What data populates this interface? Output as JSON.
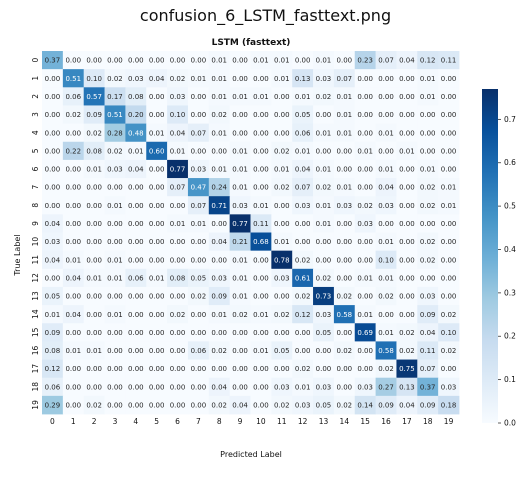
{
  "page_title": "confusion_6_LSTM_fasttext.png",
  "chart_data": {
    "type": "heatmap",
    "title": "LSTM (fasttext)",
    "xlabel": "Predicted Label",
    "ylabel": "True Label",
    "x_categories": [
      "0",
      "1",
      "2",
      "3",
      "4",
      "5",
      "6",
      "7",
      "8",
      "9",
      "10",
      "11",
      "12",
      "13",
      "14",
      "15",
      "16",
      "17",
      "18",
      "19"
    ],
    "y_categories": [
      "0",
      "1",
      "2",
      "3",
      "4",
      "5",
      "6",
      "7",
      "8",
      "9",
      "10",
      "11",
      "12",
      "13",
      "14",
      "15",
      "16",
      "17",
      "18",
      "19"
    ],
    "colormap": "Blues",
    "colorbar": {
      "min": 0.0,
      "max": 0.77,
      "ticks": [
        0.0,
        0.1,
        0.2,
        0.3,
        0.4,
        0.5,
        0.6,
        0.7
      ]
    },
    "annotation_format": "0.00",
    "values": [
      [
        0.37,
        0.0,
        0.0,
        0.0,
        0.0,
        0.0,
        0.0,
        0.0,
        0.01,
        0.0,
        0.01,
        0.01,
        0.0,
        0.01,
        0.0,
        0.23,
        0.07,
        0.04,
        0.12,
        0.11
      ],
      [
        0.0,
        0.51,
        0.1,
        0.02,
        0.03,
        0.04,
        0.02,
        0.01,
        0.01,
        0.0,
        0.0,
        0.01,
        0.13,
        0.03,
        0.07,
        0.0,
        0.0,
        0.0,
        0.01,
        0.0
      ],
      [
        0.0,
        0.06,
        0.57,
        0.17,
        0.08,
        0.0,
        0.03,
        0.0,
        0.01,
        0.01,
        0.01,
        0.0,
        0.01,
        0.02,
        0.01,
        0.0,
        0.0,
        0.0,
        0.01,
        0.0
      ],
      [
        0.0,
        0.02,
        0.09,
        0.51,
        0.2,
        0.0,
        0.1,
        0.0,
        0.02,
        0.0,
        0.0,
        0.0,
        0.05,
        0.0,
        0.01,
        0.0,
        0.0,
        0.0,
        0.0,
        0.0
      ],
      [
        0.0,
        0.0,
        0.02,
        0.28,
        0.48,
        0.01,
        0.04,
        0.07,
        0.01,
        0.0,
        0.0,
        0.0,
        0.06,
        0.01,
        0.01,
        0.0,
        0.01,
        0.0,
        0.0,
        0.0
      ],
      [
        0.0,
        0.22,
        0.08,
        0.02,
        0.01,
        0.6,
        0.01,
        0.0,
        0.0,
        0.01,
        0.0,
        0.02,
        0.01,
        0.0,
        0.0,
        0.01,
        0.0,
        0.01,
        0.0,
        0.0
      ],
      [
        0.0,
        0.0,
        0.01,
        0.03,
        0.04,
        0.0,
        0.77,
        0.03,
        0.01,
        0.01,
        0.0,
        0.01,
        0.04,
        0.01,
        0.0,
        0.0,
        0.01,
        0.0,
        0.01,
        0.0
      ],
      [
        0.0,
        0.0,
        0.0,
        0.0,
        0.0,
        0.0,
        0.07,
        0.47,
        0.24,
        0.01,
        0.0,
        0.02,
        0.07,
        0.02,
        0.01,
        0.0,
        0.04,
        0.0,
        0.02,
        0.01
      ],
      [
        0.0,
        0.0,
        0.0,
        0.01,
        0.0,
        0.0,
        0.0,
        0.07,
        0.71,
        0.03,
        0.01,
        0.0,
        0.03,
        0.01,
        0.03,
        0.02,
        0.03,
        0.0,
        0.02,
        0.01
      ],
      [
        0.04,
        0.0,
        0.0,
        0.0,
        0.0,
        0.0,
        0.01,
        0.01,
        0.0,
        0.77,
        0.11,
        0.0,
        0.0,
        0.01,
        0.0,
        0.03,
        0.0,
        0.0,
        0.0,
        0.0
      ],
      [
        0.03,
        0.0,
        0.0,
        0.0,
        0.0,
        0.0,
        0.0,
        0.0,
        0.04,
        0.21,
        0.68,
        0.01,
        0.0,
        0.0,
        0.0,
        0.0,
        0.01,
        0.0,
        0.02,
        0.0
      ],
      [
        0.04,
        0.01,
        0.0,
        0.01,
        0.0,
        0.0,
        0.0,
        0.0,
        0.0,
        0.01,
        0.0,
        0.78,
        0.02,
        0.0,
        0.0,
        0.0,
        0.1,
        0.0,
        0.02,
        0.0
      ],
      [
        0.0,
        0.04,
        0.01,
        0.01,
        0.06,
        0.01,
        0.08,
        0.05,
        0.03,
        0.01,
        0.0,
        0.03,
        0.61,
        0.02,
        0.0,
        0.01,
        0.01,
        0.0,
        0.0,
        0.0
      ],
      [
        0.05,
        0.0,
        0.0,
        0.0,
        0.0,
        0.0,
        0.0,
        0.02,
        0.09,
        0.01,
        0.0,
        0.0,
        0.02,
        0.73,
        0.02,
        0.0,
        0.02,
        0.0,
        0.03,
        0.0
      ],
      [
        0.01,
        0.04,
        0.0,
        0.01,
        0.0,
        0.0,
        0.02,
        0.0,
        0.01,
        0.02,
        0.01,
        0.02,
        0.12,
        0.03,
        0.58,
        0.01,
        0.0,
        0.0,
        0.09,
        0.02
      ],
      [
        0.09,
        0.0,
        0.0,
        0.0,
        0.0,
        0.0,
        0.0,
        0.0,
        0.0,
        0.0,
        0.0,
        0.0,
        0.0,
        0.05,
        0.0,
        0.69,
        0.01,
        0.02,
        0.04,
        0.1
      ],
      [
        0.08,
        0.01,
        0.01,
        0.0,
        0.0,
        0.0,
        0.0,
        0.06,
        0.02,
        0.0,
        0.01,
        0.05,
        0.0,
        0.0,
        0.02,
        0.0,
        0.58,
        0.02,
        0.11,
        0.02
      ],
      [
        0.12,
        0.0,
        0.0,
        0.0,
        0.0,
        0.0,
        0.0,
        0.0,
        0.0,
        0.0,
        0.0,
        0.0,
        0.02,
        0.0,
        0.0,
        0.0,
        0.02,
        0.75,
        0.07,
        0.0
      ],
      [
        0.06,
        0.0,
        0.0,
        0.0,
        0.0,
        0.0,
        0.0,
        0.0,
        0.04,
        0.0,
        0.0,
        0.03,
        0.01,
        0.03,
        0.0,
        0.03,
        0.27,
        0.13,
        0.37,
        0.03
      ],
      [
        0.29,
        0.0,
        0.02,
        0.0,
        0.0,
        0.0,
        0.0,
        0.0,
        0.02,
        0.04,
        0.0,
        0.02,
        0.03,
        0.05,
        0.02,
        0.14,
        0.09,
        0.04,
        0.09,
        0.18
      ]
    ]
  }
}
